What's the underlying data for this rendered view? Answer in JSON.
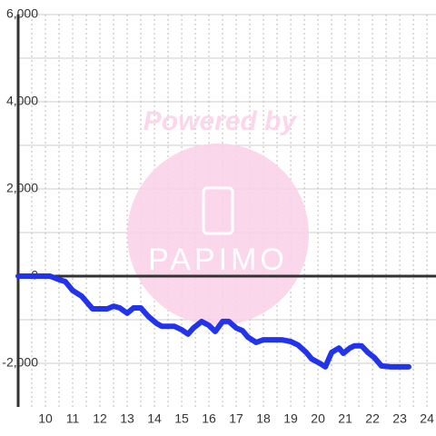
{
  "chart_data": {
    "type": "line",
    "watermark": {
      "text": "Powered by",
      "logo": "PAPIMO"
    },
    "x": [
      9,
      10.17,
      10.5,
      10.73,
      11,
      11.33,
      11.73,
      12.27,
      12.5,
      12.73,
      13,
      13.23,
      13.5,
      13.77,
      14.07,
      14.27,
      14.73,
      15,
      15.23,
      15.43,
      15.73,
      16,
      16.23,
      16.5,
      16.73,
      17,
      17.23,
      17.43,
      17.73,
      18,
      18.67,
      19,
      19.27,
      19.57,
      19.77,
      20.07,
      20.27,
      20.5,
      20.77,
      20.93,
      21.17,
      21.33,
      21.6,
      21.83,
      22.07,
      22.33,
      22.67,
      23.33
    ],
    "series": [
      {
        "color": "#2233ee",
        "values": [
          0,
          0,
          -80,
          -125,
          -330,
          -460,
          -750,
          -750,
          -690,
          -730,
          -850,
          -730,
          -730,
          -920,
          -1080,
          -1150,
          -1150,
          -1230,
          -1330,
          -1190,
          -1040,
          -1130,
          -1270,
          -1040,
          -1040,
          -1190,
          -1250,
          -1400,
          -1520,
          -1460,
          -1460,
          -1500,
          -1580,
          -1750,
          -1900,
          -2000,
          -2080,
          -1750,
          -1650,
          -1770,
          -1650,
          -1600,
          -1600,
          -1750,
          -1870,
          -2060,
          -2080,
          -2080
        ]
      }
    ],
    "xlim": [
      9,
      24.33
    ],
    "xticks": [
      10,
      11,
      12,
      13,
      14,
      15,
      16,
      17,
      18,
      19,
      20,
      21,
      22,
      23,
      24
    ],
    "ylim": [
      -3000,
      6000
    ],
    "yticks": [
      {
        "value": -2000,
        "label": "-2,000"
      },
      0,
      {
        "value": 2000,
        "label": "2,000"
      },
      {
        "value": 4000,
        "label": "4,000"
      },
      {
        "value": 6000,
        "label": "6,000"
      }
    ],
    "grid": true
  }
}
